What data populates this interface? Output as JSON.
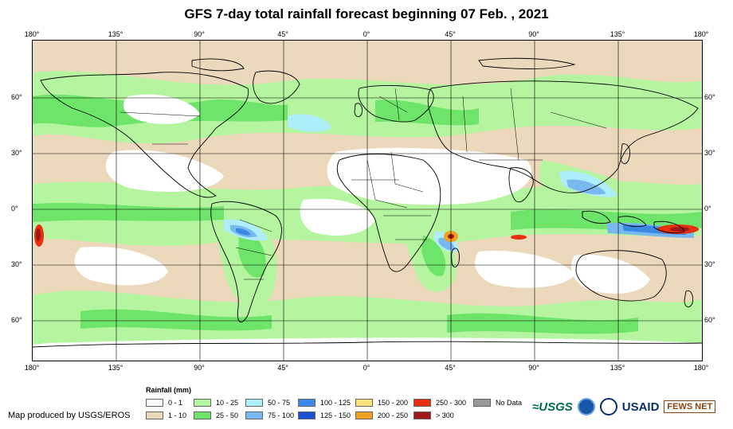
{
  "title": "GFS 7-day total rainfall forecast beginning 07 Feb. , 2021",
  "longitude_ticks": [
    "180°",
    "135°",
    "90°",
    "45°",
    "0°",
    "45°",
    "90°",
    "135°",
    "180°"
  ],
  "latitude_ticks": [
    "60°",
    "30°",
    "0°",
    "30°",
    "60°"
  ],
  "legend": {
    "title": "Rainfall (mm)",
    "items": [
      {
        "label": "0 - 1",
        "color": "#ffffff"
      },
      {
        "label": "1 - 10",
        "color": "#ecd9bc"
      },
      {
        "label": "10 - 25",
        "color": "#b6f5a0"
      },
      {
        "label": "25 - 50",
        "color": "#6ee46a"
      },
      {
        "label": "50 - 75",
        "color": "#aeeefa"
      },
      {
        "label": "75 - 100",
        "color": "#7ab8f0"
      },
      {
        "label": "100 - 125",
        "color": "#3c88e6"
      },
      {
        "label": "125 - 150",
        "color": "#1a4fd0"
      },
      {
        "label": "150 - 200",
        "color": "#ffe07a"
      },
      {
        "label": "200 - 250",
        "color": "#f4a020"
      },
      {
        "label": "250 - 300",
        "color": "#e83010"
      },
      {
        "label": "> 300",
        "color": "#a01818"
      },
      {
        "label": "No Data",
        "color": "#999999"
      }
    ]
  },
  "credit": "Map produced by USGS/EROS",
  "logos": {
    "usgs": "≈USGS",
    "usaid": "USAID",
    "fews": "FEWS NET"
  },
  "icons": [
    "noaa-seal-icon",
    "usaid-seal-icon"
  ]
}
